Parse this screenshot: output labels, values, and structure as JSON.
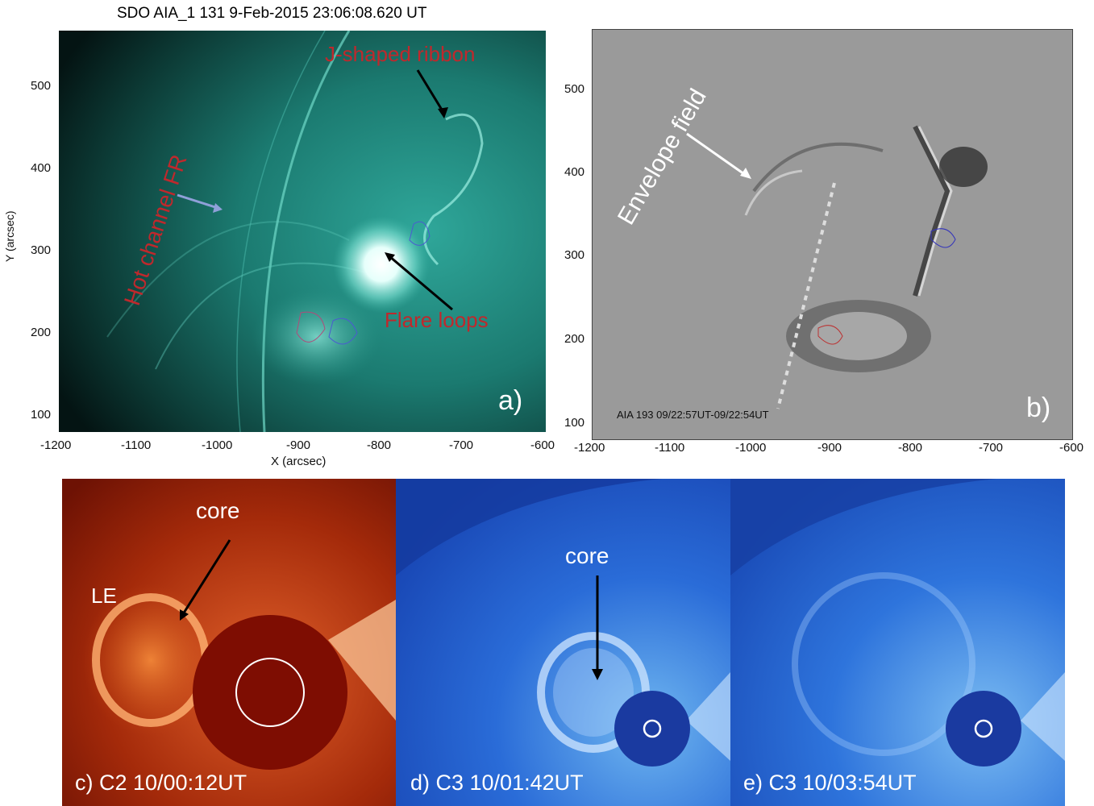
{
  "title": "SDO AIA_1 131  9-Feb-2015 23:06:08.620 UT",
  "panel_a": {
    "letter": "a)",
    "xlabel": "X (arcsec)",
    "ylabel": "Y (arcsec)",
    "x_ticks": [
      "-1200",
      "-1100",
      "-1000",
      "-900",
      "-800",
      "-700",
      "-600"
    ],
    "y_ticks": [
      "500",
      "400",
      "300",
      "200",
      "100"
    ],
    "labels": {
      "ribbon": "J-shaped ribbon",
      "hot_channel": "Hot channel FR",
      "flare_loops": "Flare loops"
    },
    "colors": {
      "label_red": "#c0282c",
      "arrow_blue": "#8fa0d8",
      "arrow_black": "#000000"
    }
  },
  "panel_b": {
    "letter": "b)",
    "subtitle": "AIA 193 09/22:57UT-09/22:54UT",
    "x_ticks": [
      "-1200",
      "-1100",
      "-1000",
      "-900",
      "-800",
      "-700",
      "-600"
    ],
    "y_ticks": [
      "500",
      "400",
      "300",
      "200",
      "100"
    ],
    "labels": {
      "envelope": "Envelope field"
    }
  },
  "panel_c": {
    "caption": "c) C2 10/00:12UT",
    "labels": {
      "core": "core",
      "le": "LE"
    }
  },
  "panel_d": {
    "caption": "d) C3 10/01:42UT",
    "labels": {
      "core": "core"
    }
  },
  "panel_e": {
    "caption": "e) C3 10/03:54UT"
  }
}
